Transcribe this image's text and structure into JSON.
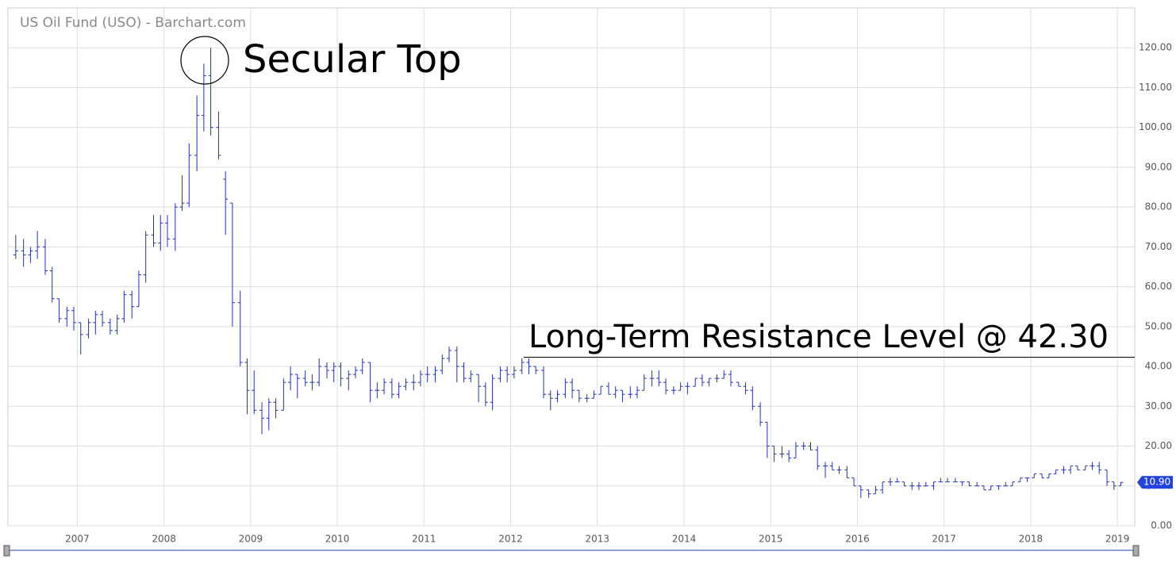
{
  "chart_data": {
    "type": "ohlc",
    "title": "US Oil Fund (USO) - Barchart.com",
    "annotations": [
      "Secular Top",
      "Long-Term Resistance Level @ 42.30"
    ],
    "resistance": 42.3,
    "last_price": {
      "value": 10.9,
      "label": "10.90"
    },
    "color": "#2233aa",
    "grid": true,
    "xlim": [
      2006.2,
      2019.2
    ],
    "xticks": [
      2007,
      2008,
      2009,
      2010,
      2011,
      2012,
      2013,
      2014,
      2015,
      2016,
      2017,
      2018,
      2019
    ],
    "ylim": [
      0,
      130
    ],
    "yticks": [
      {
        "value": 0,
        "label": "0.00"
      },
      {
        "value": 10,
        "label": "10.00"
      },
      {
        "value": 20,
        "label": "20.00"
      },
      {
        "value": 30,
        "label": "30.00"
      },
      {
        "value": 40,
        "label": "40.00"
      },
      {
        "value": 50,
        "label": "50.00"
      },
      {
        "value": 60,
        "label": "60.00"
      },
      {
        "value": 70,
        "label": "70.00"
      },
      {
        "value": 80,
        "label": "80.00"
      },
      {
        "value": 90,
        "label": "90.00"
      },
      {
        "value": 100,
        "label": "100.00"
      },
      {
        "value": 110,
        "label": "110.00"
      },
      {
        "value": 120,
        "label": "120.00"
      }
    ],
    "x": [
      2006.29,
      2006.38,
      2006.46,
      2006.54,
      2006.63,
      2006.71,
      2006.79,
      2006.88,
      2006.96,
      2007.04,
      2007.13,
      2007.21,
      2007.29,
      2007.38,
      2007.46,
      2007.54,
      2007.63,
      2007.71,
      2007.79,
      2007.88,
      2007.96,
      2008.04,
      2008.13,
      2008.21,
      2008.29,
      2008.38,
      2008.46,
      2008.54,
      2008.63,
      2008.71,
      2008.79,
      2008.88,
      2008.96,
      2009.04,
      2009.13,
      2009.21,
      2009.29,
      2009.38,
      2009.46,
      2009.54,
      2009.63,
      2009.71,
      2009.79,
      2009.88,
      2009.96,
      2010.04,
      2010.13,
      2010.21,
      2010.29,
      2010.38,
      2010.46,
      2010.54,
      2010.63,
      2010.71,
      2010.79,
      2010.88,
      2010.96,
      2011.04,
      2011.13,
      2011.21,
      2011.29,
      2011.38,
      2011.46,
      2011.54,
      2011.63,
      2011.71,
      2011.79,
      2011.88,
      2011.96,
      2012.04,
      2012.13,
      2012.21,
      2012.29,
      2012.38,
      2012.46,
      2012.54,
      2012.63,
      2012.71,
      2012.79,
      2012.88,
      2012.96,
      2013.04,
      2013.13,
      2013.21,
      2013.29,
      2013.38,
      2013.46,
      2013.54,
      2013.63,
      2013.71,
      2013.79,
      2013.88,
      2013.96,
      2014.04,
      2014.13,
      2014.21,
      2014.29,
      2014.38,
      2014.46,
      2014.54,
      2014.63,
      2014.71,
      2014.79,
      2014.88,
      2014.96,
      2015.04,
      2015.13,
      2015.21,
      2015.29,
      2015.38,
      2015.46,
      2015.54,
      2015.63,
      2015.71,
      2015.79,
      2015.88,
      2015.96,
      2016.04,
      2016.13,
      2016.21,
      2016.29,
      2016.38,
      2016.46,
      2016.54,
      2016.63,
      2016.71,
      2016.79,
      2016.88,
      2016.96,
      2017.04,
      2017.13,
      2017.21,
      2017.29,
      2017.38,
      2017.46,
      2017.54,
      2017.63,
      2017.71,
      2017.79,
      2017.88,
      2017.96,
      2018.04,
      2018.13,
      2018.21,
      2018.29,
      2018.38,
      2018.46,
      2018.54,
      2018.63,
      2018.71,
      2018.79,
      2018.88,
      2018.96,
      2019.04
    ],
    "open": [
      68,
      69,
      68,
      69,
      70,
      64,
      57,
      52,
      54,
      51,
      48,
      51,
      53,
      51,
      49,
      52,
      58,
      55,
      63,
      73,
      71,
      76,
      72,
      80,
      81,
      93,
      103,
      113,
      100,
      87,
      81,
      56,
      41,
      34,
      29,
      27,
      31,
      29,
      36,
      38,
      37,
      36,
      36,
      40,
      39,
      40,
      37,
      38,
      39,
      41,
      34,
      34,
      36,
      33,
      35,
      36,
      36,
      38,
      38,
      39,
      42,
      44,
      40,
      37,
      38,
      35,
      31,
      37,
      39,
      38,
      39,
      41,
      40,
      39,
      33,
      32,
      33,
      36,
      34,
      32,
      32,
      33,
      35,
      33,
      34,
      33,
      33,
      34,
      37,
      37,
      36,
      34,
      34,
      35,
      35,
      37,
      36,
      37,
      37,
      38,
      36,
      35,
      34,
      30,
      26,
      20,
      18,
      18,
      17,
      20,
      20,
      19,
      15,
      15,
      14,
      14,
      12,
      10,
      9,
      8,
      9,
      11,
      11,
      11,
      10,
      10,
      10,
      10,
      11,
      11,
      11,
      11,
      11,
      10,
      10,
      9,
      10,
      10,
      10,
      11,
      12,
      12,
      13,
      12,
      13,
      14,
      14,
      15,
      14,
      15,
      15,
      14,
      11,
      10
    ],
    "high": [
      73,
      72,
      70,
      74,
      72,
      65,
      57,
      55,
      55,
      51,
      52,
      54,
      54,
      52,
      53,
      59,
      59,
      64,
      74,
      78,
      78,
      78,
      81,
      88,
      96,
      108,
      116,
      120,
      104,
      89,
      81,
      59,
      42,
      39,
      31,
      32,
      32,
      37,
      40,
      38,
      39,
      38,
      42,
      41,
      41,
      41,
      39,
      40,
      42,
      41,
      36,
      37,
      37,
      36,
      37,
      38,
      39,
      40,
      40,
      43,
      45,
      45,
      41,
      39,
      38,
      36,
      38,
      40,
      40,
      40,
      42,
      42,
      40,
      40,
      34,
      34,
      37,
      37,
      34,
      33,
      34,
      35,
      36,
      35,
      34,
      35,
      35,
      38,
      39,
      39,
      37,
      35,
      36,
      36,
      37,
      38,
      37,
      38,
      39,
      39,
      36,
      36,
      35,
      31,
      26,
      20,
      20,
      19,
      21,
      21,
      21,
      20,
      16,
      16,
      15,
      15,
      12,
      10,
      9,
      10,
      11,
      12,
      12,
      11,
      11,
      11,
      11,
      11,
      12,
      12,
      12,
      11,
      11,
      11,
      10,
      10,
      10,
      11,
      11,
      12,
      12,
      13,
      13,
      13,
      14,
      15,
      15,
      15,
      15,
      16,
      16,
      14,
      11,
      11
    ],
    "low": [
      67,
      65,
      66,
      67,
      63,
      56,
      51,
      50,
      49,
      43,
      47,
      48,
      50,
      48,
      48,
      51,
      52,
      55,
      61,
      70,
      69,
      70,
      69,
      79,
      80,
      89,
      99,
      98,
      92,
      73,
      50,
      40,
      28,
      28,
      23,
      24,
      27,
      29,
      34,
      32,
      35,
      34,
      35,
      37,
      36,
      35,
      34,
      37,
      38,
      31,
      32,
      33,
      32,
      32,
      34,
      34,
      35,
      36,
      36,
      38,
      41,
      36,
      36,
      36,
      31,
      30,
      29,
      36,
      36,
      37,
      38,
      38,
      38,
      32,
      29,
      31,
      32,
      32,
      31,
      31,
      32,
      33,
      33,
      32,
      31,
      32,
      32,
      34,
      35,
      35,
      33,
      33,
      34,
      33,
      35,
      35,
      35,
      36,
      37,
      35,
      35,
      33,
      29,
      25,
      17,
      16,
      17,
      16,
      17,
      19,
      19,
      14,
      12,
      14,
      13,
      12,
      10,
      7,
      7,
      8,
      8,
      10,
      11,
      10,
      9,
      9,
      10,
      9,
      11,
      11,
      11,
      10,
      10,
      10,
      9,
      9,
      9,
      10,
      10,
      11,
      11,
      12,
      12,
      12,
      13,
      13,
      13,
      14,
      14,
      14,
      13,
      10,
      9,
      10
    ],
    "close": [
      69,
      68,
      69,
      70,
      64,
      57,
      52,
      54,
      51,
      48,
      51,
      53,
      51,
      49,
      52,
      58,
      55,
      63,
      73,
      71,
      76,
      72,
      80,
      81,
      93,
      103,
      113,
      100,
      93,
      82,
      56,
      41,
      34,
      29,
      27,
      31,
      29,
      36,
      38,
      37,
      36,
      36,
      40,
      39,
      40,
      37,
      38,
      39,
      41,
      34,
      34,
      36,
      33,
      35,
      36,
      36,
      38,
      38,
      39,
      42,
      44,
      40,
      37,
      38,
      35,
      31,
      37,
      39,
      38,
      39,
      41,
      40,
      39,
      33,
      32,
      33,
      36,
      34,
      32,
      32,
      33,
      35,
      33,
      34,
      33,
      33,
      34,
      37,
      37,
      36,
      34,
      34,
      35,
      35,
      37,
      36,
      37,
      37,
      38,
      36,
      35,
      34,
      30,
      26,
      20,
      18,
      18,
      17,
      20,
      20,
      19,
      15,
      15,
      14,
      14,
      12,
      10,
      9,
      8,
      9,
      11,
      11,
      11,
      10,
      10,
      10,
      10,
      11,
      11,
      11,
      11,
      11,
      10,
      10,
      9,
      10,
      10,
      10,
      11,
      12,
      12,
      13,
      12,
      13,
      14,
      14,
      15,
      14,
      15,
      15,
      14,
      11,
      10,
      10.9
    ]
  }
}
